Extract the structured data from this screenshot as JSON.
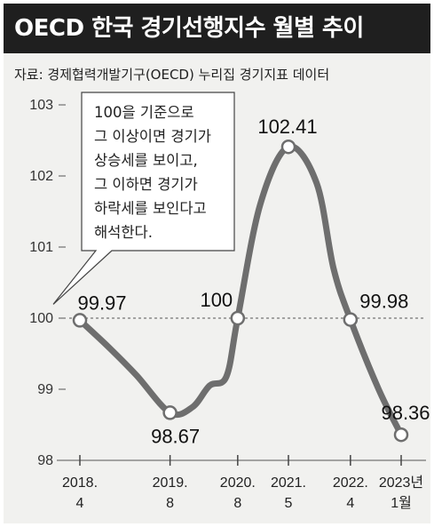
{
  "title": "OECD 한국 경기선행지수 월별 추이",
  "source": "자료: 경제협력개발기구(OECD) 누리집 경기지표 데이터",
  "annotation": [
    "100을 기준으로",
    "그 이상이면 경기가",
    "상승세를 보이고,",
    "그 이하면 경기가",
    "하락세를 보인다고",
    "해석한다."
  ],
  "colors": {
    "title_bg": "#1f1f1f",
    "panel_bg": "#f1f1ef",
    "line": "#6e6e6e",
    "marker_fill": "#ffffff"
  },
  "chart_data": {
    "type": "line",
    "title": "OECD 한국 경기선행지수 월별 추이",
    "xlabel": "",
    "ylabel": "",
    "ylim": [
      98,
      103
    ],
    "yticks": [
      "103",
      "102",
      "101",
      "100",
      "99",
      "98"
    ],
    "reference_line": 100,
    "grid": false,
    "x_ticks": [
      {
        "line1": "2018.",
        "line2": "4"
      },
      {
        "line1": "2019.",
        "line2": "8"
      },
      {
        "line1": "2020.",
        "line2": "8"
      },
      {
        "line1": "2021.",
        "line2": "5"
      },
      {
        "line1": "2022.",
        "line2": "4"
      },
      {
        "line1": "2023년",
        "line2": "1월"
      }
    ],
    "series": [
      {
        "points": [
          {
            "x": "2018-04",
            "y": 99.97,
            "label": "99.97"
          },
          {
            "x": "2018-09",
            "y": 99.6
          },
          {
            "x": "2019-02",
            "y": 99.2
          },
          {
            "x": "2019-08",
            "y": 98.67,
            "label": "98.67"
          },
          {
            "x": "2019-12",
            "y": 98.75
          },
          {
            "x": "2020-03",
            "y": 99.05
          },
          {
            "x": "2020-06",
            "y": 99.18
          },
          {
            "x": "2020-08",
            "y": 100,
            "label": "100"
          },
          {
            "x": "2020-12",
            "y": 101.6
          },
          {
            "x": "2021-05",
            "y": 102.41,
            "label": "102.41"
          },
          {
            "x": "2021-10",
            "y": 101.9
          },
          {
            "x": "2022-01",
            "y": 100.7
          },
          {
            "x": "2022-04",
            "y": 99.98,
            "label": "99.98"
          },
          {
            "x": "2022-09",
            "y": 99.0
          },
          {
            "x": "2023-01",
            "y": 98.36,
            "label": "98.36"
          }
        ]
      }
    ]
  }
}
